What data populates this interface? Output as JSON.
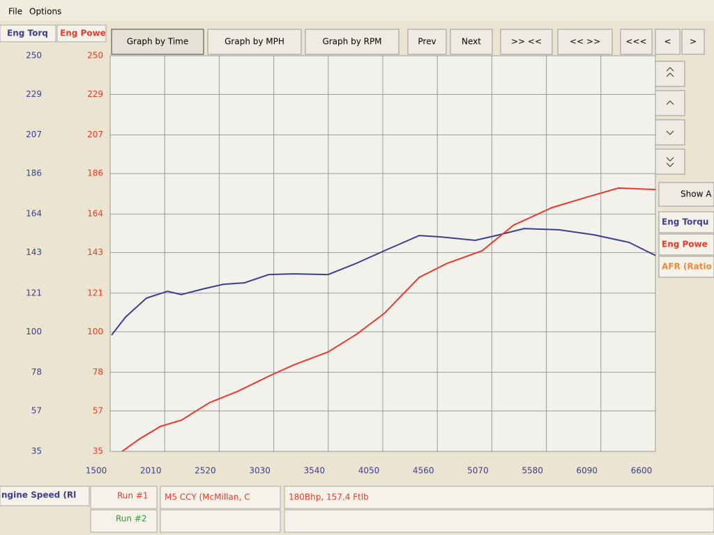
{
  "menu": [
    "File",
    "Options"
  ],
  "buttons": [
    "Graph by Time",
    "Graph by MPH",
    "Graph by RPM",
    "Prev",
    "Next",
    ">> <<",
    "<< >>",
    "<<<",
    "<",
    ">"
  ],
  "show_button": "Show A",
  "chart_data": {
    "type": "line",
    "ylabel": "Eng Torq",
    "y2label": "Eng Powe",
    "xlim": [
      1500,
      6600
    ],
    "xticks": [
      1500,
      2010,
      2520,
      3030,
      3540,
      4050,
      4560,
      5070,
      5580,
      6090,
      6600
    ],
    "ylim": [
      35,
      250
    ],
    "yticks": [
      35,
      57,
      78,
      100,
      121,
      143,
      164,
      186,
      207,
      229,
      250
    ],
    "y2lim": [
      35,
      250
    ],
    "y2ticks": [
      35,
      57,
      78,
      100,
      121,
      143,
      164,
      186,
      207,
      229,
      250
    ],
    "grid": true,
    "series": [
      {
        "name": "Eng Torqu",
        "color": "#3b3f8c",
        "x": [
          1513,
          1644,
          1840,
          2036,
          2167,
          2363,
          2559,
          2756,
          2985,
          3213,
          3540,
          3802,
          4064,
          4391,
          4587,
          4914,
          5110,
          5372,
          5699,
          6026,
          6353,
          6601
        ],
        "values": [
          98.2,
          108,
          118.3,
          122,
          120.2,
          123.2,
          125.8,
          126.6,
          131.1,
          131.5,
          131.1,
          137.2,
          144,
          152.3,
          151.6,
          149.7,
          152.3,
          156.1,
          155.4,
          152.7,
          148.6,
          141.4
        ]
      },
      {
        "name": "Eng Powe",
        "color": "#e8392b",
        "axis": "y2",
        "x": [
          1611,
          1775,
          1971,
          2167,
          2429,
          2690,
          2985,
          3213,
          3540,
          3802,
          4064,
          4391,
          4652,
          4979,
          5274,
          5633,
          5960,
          6255,
          6601
        ],
        "values": [
          35,
          41.8,
          48.6,
          52,
          61.5,
          67.6,
          75.9,
          81.9,
          89.1,
          98.6,
          110,
          129.6,
          137.2,
          144,
          158,
          167.5,
          173.2,
          178.1,
          177.3
        ]
      },
      {
        "name": "AFR (Ratio",
        "color": "#f08a3c",
        "x": [],
        "values": []
      }
    ]
  },
  "status": {
    "xlabel": "ngine Speed (Rl",
    "run1": "Run #1",
    "run2": "Run #2",
    "run_name": "M5 CCY (McMillan, C",
    "result": "180Bhp, 157.4 Ftlb"
  }
}
